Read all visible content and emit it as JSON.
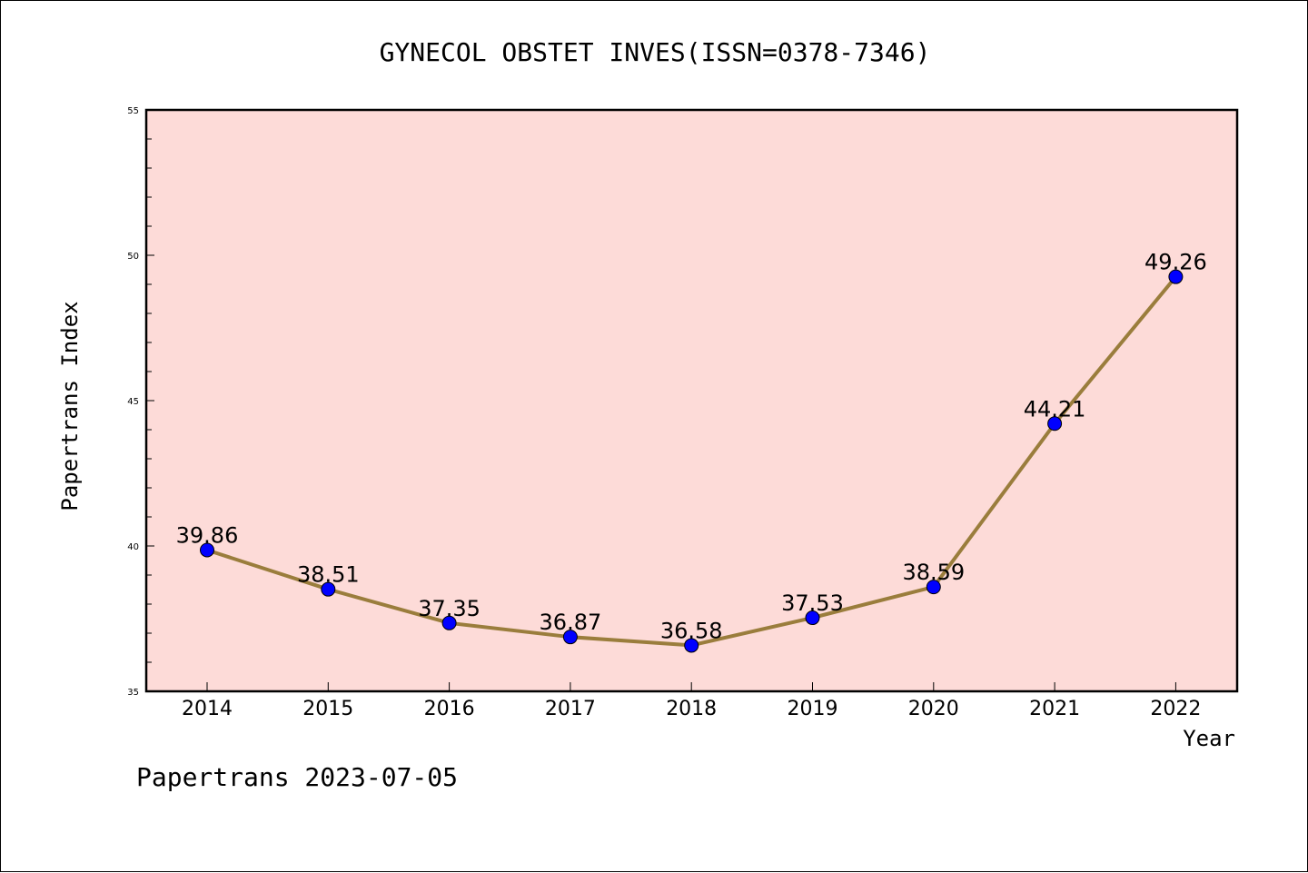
{
  "chart_data": {
    "type": "line",
    "title": "GYNECOL OBSTET INVES(ISSN=0378-7346)",
    "xlabel": "Year",
    "ylabel": "Papertrans Index",
    "categories": [
      "2014",
      "2015",
      "2016",
      "2017",
      "2018",
      "2019",
      "2020",
      "2021",
      "2022"
    ],
    "values": [
      39.86,
      38.51,
      37.35,
      36.87,
      36.58,
      37.53,
      38.59,
      44.21,
      49.26
    ],
    "data_labels": [
      "39.86",
      "38.51",
      "37.35",
      "36.87",
      "36.58",
      "37.53",
      "38.59",
      "44.21",
      "49.26"
    ],
    "ylim": [
      35,
      55
    ],
    "y_ticks": [
      "35",
      "40",
      "45",
      "50",
      "55"
    ],
    "grid": false,
    "legend": "none",
    "footer": "Papertrans 2023-07-05",
    "colors": {
      "plot_background": "#fddbd8",
      "line": "#9a7d3c",
      "marker": "#0000ff",
      "axes": "#000000"
    }
  }
}
